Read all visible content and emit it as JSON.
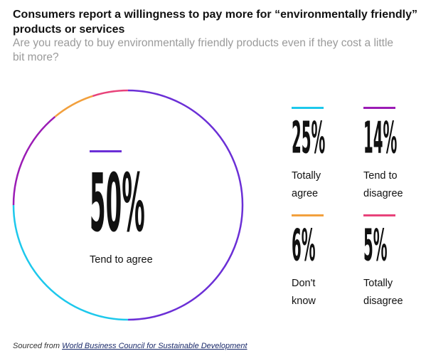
{
  "title": "Consumers report a willingness to pay more for “environmentally friendly” products or services",
  "subtitle": "Are you ready to buy environmentally friendly products even if they cost a little bit more?",
  "chart_data": {
    "type": "pie",
    "style": "ring",
    "categories": [
      "Tend to agree",
      "Totally agree",
      "Tend to disagree",
      "Don't know",
      "Totally disagree"
    ],
    "values": [
      50,
      25,
      14,
      6,
      5
    ],
    "colors": [
      "#6b2fd6",
      "#1dc8ec",
      "#9b1cb5",
      "#f2a03d",
      "#e8437a"
    ],
    "value_labels": [
      "50%",
      "25%",
      "14%",
      "6%",
      "5%"
    ],
    "value_labels_text": [
      "Tend to agree",
      "Totally agree",
      "Tend to\ndisagree",
      "Don't\nknow",
      "Totally\ndisagree"
    ]
  },
  "stats": {
    "main": {
      "value": "50%",
      "label": "Tend to agree"
    },
    "totally_agree": {
      "value": "25%",
      "label_line1": "Totally",
      "label_line2": "agree"
    },
    "tend_to_disagree": {
      "value": "14%",
      "label_line1": "Tend to",
      "label_line2": "disagree"
    },
    "dont_know": {
      "value": "6%",
      "label_line1": "Don't",
      "label_line2": "know"
    },
    "totally_disagree": {
      "value": "5%",
      "label_line1": "Totally",
      "label_line2": "disagree"
    }
  },
  "source": {
    "prefix": "Sourced from",
    "link_text": "World Business Council for Sustainable Development"
  }
}
